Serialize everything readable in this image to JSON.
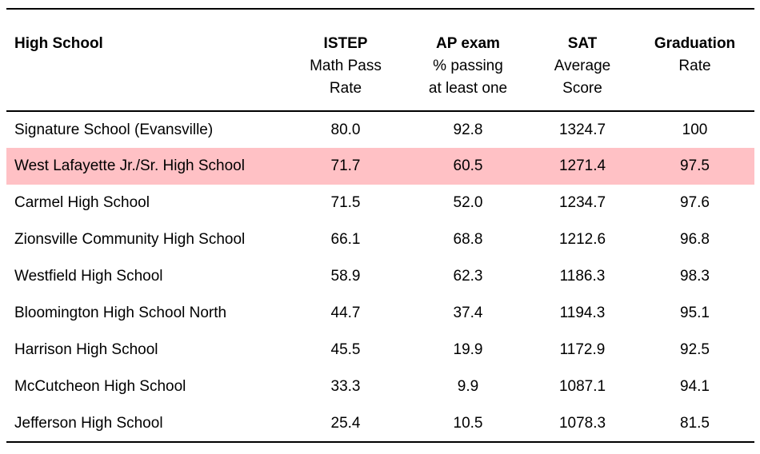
{
  "chart_data": {
    "type": "table",
    "title": "",
    "legend": "none",
    "grid": "horizontal-rules-only",
    "colors": {
      "highlight_row_background": "#ffc1c5",
      "rule": "#000000",
      "text": "#000000",
      "background": "#ffffff"
    },
    "columns": [
      {
        "id": "school",
        "align": "left",
        "lines": [
          "High School"
        ]
      },
      {
        "id": "istep",
        "align": "center",
        "lines": [
          "ISTEP",
          "Math Pass",
          "Rate"
        ]
      },
      {
        "id": "ap",
        "align": "center",
        "lines": [
          "AP exam",
          "% passing",
          "at least one"
        ]
      },
      {
        "id": "sat",
        "align": "center",
        "lines": [
          "SAT",
          "Average",
          "Score"
        ]
      },
      {
        "id": "grad",
        "align": "center",
        "lines": [
          "Graduation",
          "Rate"
        ]
      }
    ],
    "rows": [
      {
        "school": "Signature School (Evansville)",
        "istep": "80.0",
        "ap": "92.8",
        "sat": "1324.7",
        "grad": "100",
        "highlighted": false
      },
      {
        "school": "West Lafayette Jr./Sr. High School",
        "istep": "71.7",
        "ap": "60.5",
        "sat": "1271.4",
        "grad": "97.5",
        "highlighted": true
      },
      {
        "school": "Carmel High School",
        "istep": "71.5",
        "ap": "52.0",
        "sat": "1234.7",
        "grad": "97.6",
        "highlighted": false
      },
      {
        "school": "Zionsville Community High School",
        "istep": "66.1",
        "ap": "68.8",
        "sat": "1212.6",
        "grad": "96.8",
        "highlighted": false
      },
      {
        "school": "Westfield High School",
        "istep": "58.9",
        "ap": "62.3",
        "sat": "1186.3",
        "grad": "98.3",
        "highlighted": false
      },
      {
        "school": "Bloomington High School North",
        "istep": "44.7",
        "ap": "37.4",
        "sat": "1194.3",
        "grad": "95.1",
        "highlighted": false
      },
      {
        "school": "Harrison High School",
        "istep": "45.5",
        "ap": "19.9",
        "sat": "1172.9",
        "grad": "92.5",
        "highlighted": false
      },
      {
        "school": "McCutcheon High School",
        "istep": "33.3",
        "ap": "9.9",
        "sat": "1087.1",
        "grad": "94.1",
        "highlighted": false
      },
      {
        "school": "Jefferson High School",
        "istep": "25.4",
        "ap": "10.5",
        "sat": "1078.3",
        "grad": "81.5",
        "highlighted": false
      }
    ]
  }
}
